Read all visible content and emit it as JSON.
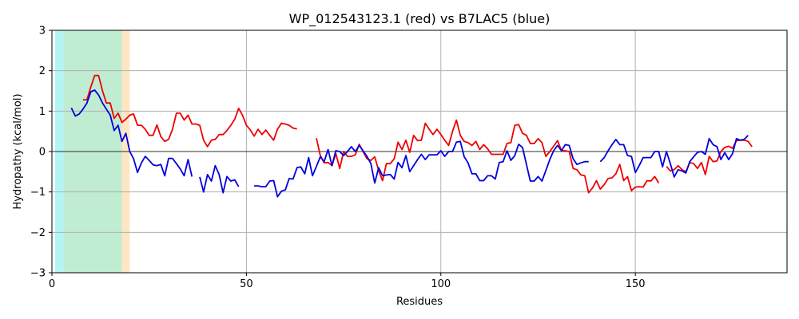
{
  "chart_data": {
    "type": "line",
    "title": "WP_012543123.1 (red) vs B7LAC5 (blue)",
    "xlabel": "Residues",
    "ylabel": "Hydropathy (kcal/mol)",
    "xlim": [
      0,
      189
    ],
    "ylim": [
      -3,
      3
    ],
    "xticks": [
      0,
      50,
      100,
      150
    ],
    "yticks": [
      -3,
      -2,
      -1,
      0,
      1,
      2,
      3
    ],
    "grid": true,
    "zero_line": true,
    "regions": [
      {
        "x0": 0.8,
        "x1": 3,
        "color": "#b3f5f5"
      },
      {
        "x0": 3,
        "x1": 18,
        "color": "#c0ecd2"
      },
      {
        "x0": 18,
        "x1": 20,
        "color": "#ffe6c2"
      }
    ],
    "series": [
      {
        "color": "#ee0000",
        "segments": [
          {
            "start": 8,
            "y": [
              1.28,
              1.28,
              1.6,
              1.88,
              1.88,
              1.5,
              1.2,
              1.2,
              0.82,
              0.95,
              0.72,
              0.8,
              0.9,
              0.93,
              0.65,
              0.65,
              0.55,
              0.4,
              0.4,
              0.66,
              0.37,
              0.25,
              0.3,
              0.55,
              0.95,
              0.95,
              0.78,
              0.9,
              0.68,
              0.68,
              0.65,
              0.28,
              0.12,
              0.28,
              0.3,
              0.42,
              0.42,
              0.52,
              0.65,
              0.8,
              1.07,
              0.9,
              0.65,
              0.53,
              0.38,
              0.55,
              0.42,
              0.53,
              0.4,
              0.28,
              0.55,
              0.7,
              0.68,
              0.65,
              0.58,
              0.56
            ]
          },
          {
            "start": 68,
            "y": [
              0.33,
              -0.1,
              -0.28,
              -0.27,
              -0.35,
              -0.05,
              -0.42,
              0.0,
              -0.12,
              -0.12,
              -0.08,
              0.18,
              0.0,
              -0.18,
              -0.22,
              -0.13,
              -0.47,
              -0.72,
              -0.3,
              -0.3,
              -0.18,
              0.23,
              0.05,
              0.28,
              -0.02,
              0.4,
              0.27,
              0.28,
              0.7,
              0.55,
              0.42,
              0.55,
              0.42,
              0.28,
              0.15,
              0.5,
              0.78,
              0.4,
              0.25,
              0.22,
              0.15,
              0.25,
              0.05,
              0.17,
              0.07,
              -0.07,
              -0.07,
              -0.07,
              -0.07,
              0.2,
              0.22,
              0.65,
              0.67,
              0.45,
              0.4,
              0.2,
              0.2,
              0.32,
              0.22,
              -0.12,
              0.0,
              0.13,
              0.27,
              0.02,
              0.02,
              0.0,
              -0.42,
              -0.45,
              -0.58,
              -0.6,
              -1.02,
              -0.9,
              -0.72,
              -0.93,
              -0.82,
              -0.67,
              -0.65,
              -0.55,
              -0.32,
              -0.72,
              -0.62,
              -0.97,
              -0.88,
              -0.87,
              -0.88,
              -0.72,
              -0.73,
              -0.62,
              -0.78
            ]
          },
          {
            "start": 158,
            "y": [
              -0.37,
              -0.48,
              -0.45,
              -0.35,
              -0.45,
              -0.5,
              -0.27,
              -0.3,
              -0.42,
              -0.27,
              -0.57,
              -0.12,
              -0.25,
              -0.23,
              0.0,
              0.1,
              0.13,
              0.08,
              0.27,
              0.28,
              0.28,
              0.25,
              0.12
            ]
          }
        ]
      },
      {
        "color": "#0000dd",
        "segments": [
          {
            "start": 5,
            "y": [
              1.08,
              0.88,
              0.93,
              1.05,
              1.2,
              1.48,
              1.52,
              1.4,
              1.2,
              1.05,
              0.9,
              0.52,
              0.65,
              0.25,
              0.45,
              0.0,
              -0.18,
              -0.52,
              -0.28,
              -0.12,
              -0.22,
              -0.33,
              -0.35,
              -0.32,
              -0.6,
              -0.17,
              -0.17,
              -0.3,
              -0.43,
              -0.6,
              -0.2,
              -0.62
            ]
          },
          {
            "start": 38,
            "y": [
              -0.63,
              -1.0,
              -0.57,
              -0.73,
              -0.35,
              -0.57,
              -1.02,
              -0.62,
              -0.73,
              -0.7,
              -0.87
            ]
          },
          {
            "start": 52,
            "y": [
              -0.85,
              -0.85,
              -0.87,
              -0.87,
              -0.73,
              -0.72,
              -1.12,
              -0.98,
              -0.95,
              -0.67,
              -0.68,
              -0.4,
              -0.38,
              -0.55,
              -0.15,
              -0.6,
              -0.37,
              -0.13,
              -0.25,
              0.05,
              -0.35,
              0.02,
              0.0,
              -0.1,
              0.0,
              0.12,
              0.0,
              0.15,
              0.02,
              -0.12,
              -0.3,
              -0.78,
              -0.4,
              -0.6,
              -0.58,
              -0.57,
              -0.68,
              -0.27,
              -0.4,
              -0.1,
              -0.5,
              -0.35,
              -0.2,
              -0.07,
              -0.2,
              -0.08,
              -0.08,
              -0.08,
              0.02,
              -0.12,
              0.0,
              0.0,
              0.23,
              0.25,
              -0.13,
              -0.28,
              -0.55,
              -0.55,
              -0.72,
              -0.72,
              -0.6,
              -0.6,
              -0.68,
              -0.27,
              -0.25,
              0.02,
              -0.22,
              -0.1,
              0.18,
              0.1,
              -0.32,
              -0.73,
              -0.73,
              -0.62,
              -0.73,
              -0.47,
              -0.2,
              0.02,
              0.15,
              0.02,
              0.17,
              0.15,
              -0.18,
              -0.32,
              -0.28,
              -0.25,
              -0.25
            ]
          },
          {
            "start": 141,
            "y": [
              -0.25,
              -0.15,
              0.02,
              0.17,
              0.3,
              0.17,
              0.17,
              -0.1,
              -0.12,
              -0.52,
              -0.35,
              -0.15,
              -0.15,
              -0.15,
              0.0,
              0.0,
              -0.38,
              0.0,
              -0.3,
              -0.63,
              -0.45,
              -0.48,
              -0.53,
              -0.25,
              -0.13,
              -0.02,
              0.0,
              -0.07,
              0.32,
              0.17,
              0.12,
              -0.2,
              -0.03,
              -0.2,
              -0.05,
              0.32,
              0.28,
              0.3,
              0.4
            ]
          }
        ]
      }
    ]
  }
}
